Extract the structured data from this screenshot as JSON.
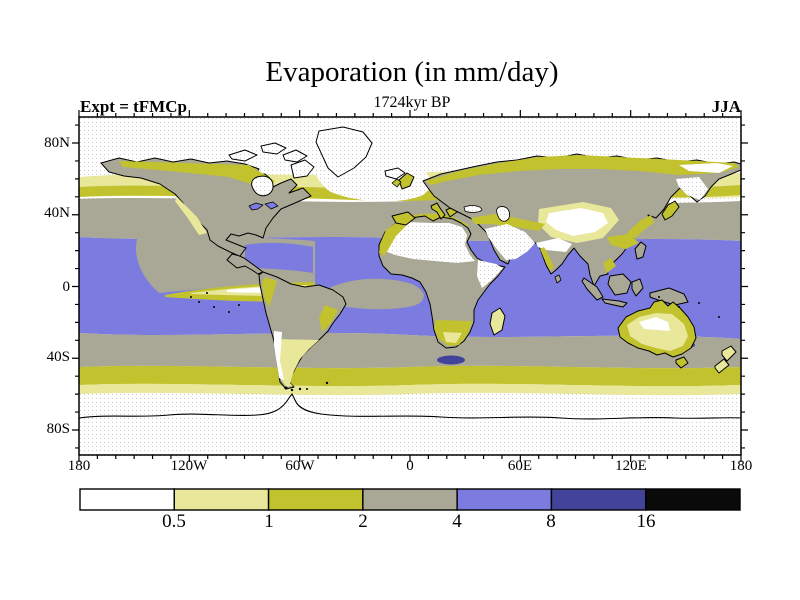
{
  "title": "Evaporation (in mm/day)",
  "subtitle": "1724kyr BP",
  "experiment_label": "Expt = tFMCp",
  "season_label": "JJA",
  "y_axis": {
    "ticks": [
      "80N",
      "40N",
      "0",
      "40S",
      "80S"
    ]
  },
  "x_axis": {
    "ticks": [
      "180",
      "120W",
      "60W",
      "0",
      "60E",
      "120E",
      "180"
    ]
  },
  "colorbar": {
    "boundary_labels": [
      "0.5",
      "1",
      "2",
      "4",
      "8",
      "16"
    ],
    "levels": [
      {
        "range": "< 0.5",
        "color": "#ffffff"
      },
      {
        "range": "0.5-1",
        "color": "#e8e79a"
      },
      {
        "range": "1-2",
        "color": "#c2c22e"
      },
      {
        "range": "2-4",
        "color": "#a9a896"
      },
      {
        "range": "4-8",
        "color": "#7b7be0"
      },
      {
        "range": "8-16",
        "color": "#43439a"
      },
      {
        "range": "> 16",
        "color": "#0a0a0a"
      }
    ]
  },
  "palette": {
    "white": "#ffffff",
    "pale_yellow": "#e8e79a",
    "olive": "#c2c22e",
    "gray": "#a9a896",
    "blue": "#7b7be0",
    "dark_blue": "#43439a",
    "black": "#0a0a0a"
  },
  "chart_data": {
    "type": "heatmap",
    "subtype": "filled-contour world map",
    "title": "Evaporation (in mm/day)",
    "subtitle": "1724kyr BP",
    "experiment": "tFMCp",
    "season": "JJA",
    "units": "mm/day",
    "projection": "global latitude-longitude",
    "lon_range": [
      -180,
      180
    ],
    "lat_range": [
      -90,
      90
    ],
    "lon_tick_labels": [
      "180",
      "120W",
      "60W",
      "0",
      "60E",
      "120E",
      "180"
    ],
    "lat_tick_labels": [
      "80N",
      "40N",
      "0",
      "40S",
      "80S"
    ],
    "contour_levels": [
      0.5,
      1,
      2,
      4,
      8,
      16
    ],
    "level_colors": [
      "#ffffff",
      "#e8e79a",
      "#c2c22e",
      "#a9a896",
      "#7b7be0",
      "#43439a",
      "#0a0a0a"
    ],
    "legend_position": "bottom horizontal color bar",
    "zonal_pattern": [
      {
        "lat_band": "90N-62N",
        "value_mm_day": "< 0.5",
        "note": "Arctic, Greenland, N Atlantic white"
      },
      {
        "lat_band": "62N-47N",
        "value_mm_day": "0.5-2",
        "note": "pale yellow / olive band across Canada, Siberia, N Pacific"
      },
      {
        "lat_band": "47N-27N",
        "value_mm_day": "2-4",
        "note": "gray band over mid-latitude oceans and continents"
      },
      {
        "lat_band": "27N-27S",
        "value_mm_day": "4-8",
        "note": "blue over tropical oceans; gray tongue in E equatorial Pacific and Atlantic; deserts (Sahara, Arabia, C Asia) < 0.5"
      },
      {
        "lat_band": "27S-44S",
        "value_mm_day": "2-4",
        "note": "gray southern band; small 8-16 dark blue patches S of Africa and E of Tasmania"
      },
      {
        "lat_band": "44S-58S",
        "value_mm_day": "0.5-2",
        "note": "olive then pale yellow circumpolar bands"
      },
      {
        "lat_band": "58S-90S",
        "value_mm_day": "< 0.5",
        "note": "Southern Ocean / Antarctica white"
      }
    ]
  }
}
